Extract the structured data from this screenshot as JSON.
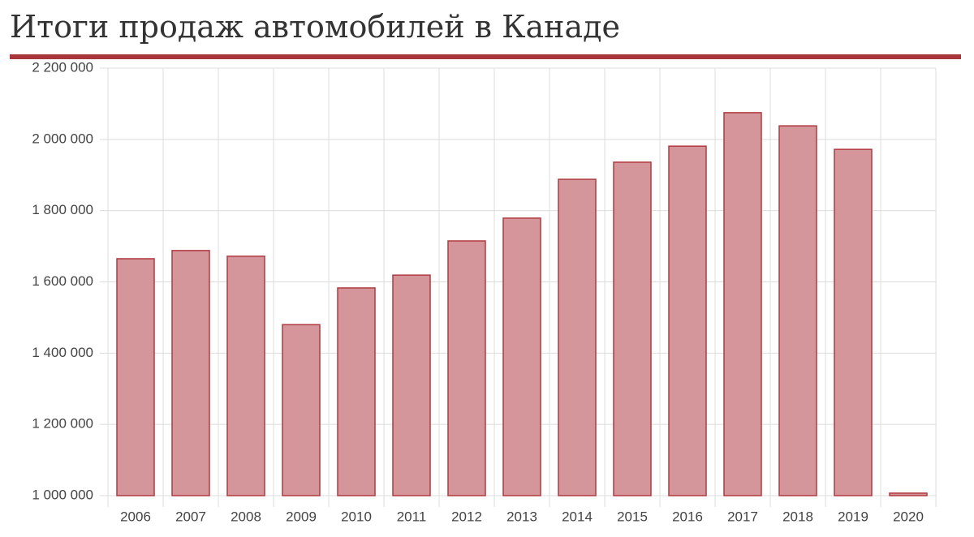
{
  "chart_data": {
    "type": "bar",
    "title": "Итоги продаж автомобилей в Канаде",
    "categories": [
      "2006",
      "2007",
      "2008",
      "2009",
      "2010",
      "2011",
      "2012",
      "2013",
      "2014",
      "2015",
      "2016",
      "2017",
      "2018",
      "2019",
      "2020"
    ],
    "values": [
      1665000,
      1688000,
      1672000,
      1480000,
      1583000,
      1619000,
      1715000,
      1779000,
      1888000,
      1936000,
      1981000,
      2075000,
      2038000,
      1972000,
      1007000
    ],
    "color": "#d4969a",
    "edge_color": "#b03a40",
    "ylim": [
      1000000,
      2200000
    ],
    "yticks": [
      {
        "value": 1000000,
        "label": "1 000 000"
      },
      {
        "value": 1200000,
        "label": "1 200 000"
      },
      {
        "value": 1400000,
        "label": "1 400 000"
      },
      {
        "value": 1600000,
        "label": "1 600 000"
      },
      {
        "value": 1800000,
        "label": "1 800 000"
      },
      {
        "value": 2000000,
        "label": "2 000 000"
      },
      {
        "value": 2200000,
        "label": "2 200 000"
      }
    ],
    "grid": true
  }
}
